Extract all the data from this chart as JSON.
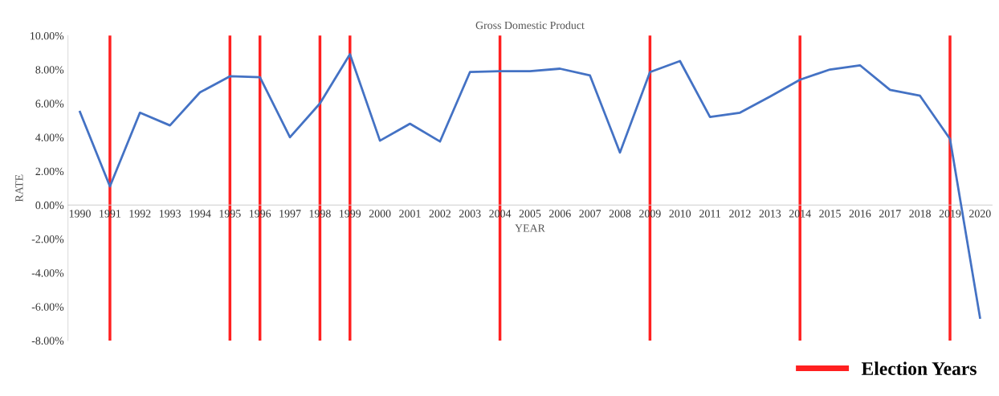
{
  "chart_data": {
    "type": "line",
    "title": "Gross Domestic Product",
    "xlabel": "YEAR",
    "ylabel": "RATE",
    "categories": [
      "1990",
      "1991",
      "1992",
      "1993",
      "1994",
      "1995",
      "1996",
      "1997",
      "1998",
      "1999",
      "2000",
      "2001",
      "2002",
      "2003",
      "2004",
      "2005",
      "2006",
      "2007",
      "2008",
      "2009",
      "2010",
      "2011",
      "2012",
      "2013",
      "2014",
      "2015",
      "2016",
      "2017",
      "2018",
      "2019",
      "2020"
    ],
    "series": [
      {
        "color": "#4472c4",
        "values": [
          5.5,
          1.1,
          5.45,
          4.7,
          6.65,
          7.6,
          7.55,
          4.0,
          6.0,
          8.9,
          3.8,
          4.8,
          3.75,
          7.85,
          7.9,
          7.9,
          8.05,
          7.65,
          3.1,
          7.85,
          8.5,
          5.2,
          5.45,
          6.4,
          7.4,
          8.0,
          8.25,
          6.8,
          6.45,
          3.9,
          -6.65
        ]
      }
    ],
    "ylim": [
      -8,
      10
    ],
    "yticks": [
      {
        "value": -8,
        "label": "-8.00%"
      },
      {
        "value": -6,
        "label": "-6.00%"
      },
      {
        "value": -4,
        "label": "-4.00%"
      },
      {
        "value": -2,
        "label": "-2.00%"
      },
      {
        "value": 0,
        "label": "0.00%"
      },
      {
        "value": 2,
        "label": "2.00%"
      },
      {
        "value": 4,
        "label": "4.00%"
      },
      {
        "value": 6,
        "label": "6.00%"
      },
      {
        "value": 8,
        "label": "8.00%"
      },
      {
        "value": 10,
        "label": "10.00%"
      }
    ],
    "ref_lines": [
      {
        "axis": "x",
        "value": "1991",
        "label": "Election Years",
        "color": "#ff2020"
      },
      {
        "axis": "x",
        "value": "1995",
        "color": "#ff2020"
      },
      {
        "axis": "x",
        "value": "1996",
        "color": "#ff2020"
      },
      {
        "axis": "x",
        "value": "1998",
        "color": "#ff2020"
      },
      {
        "axis": "x",
        "value": "1999",
        "color": "#ff2020"
      },
      {
        "axis": "x",
        "value": "2004",
        "color": "#ff2020"
      },
      {
        "axis": "x",
        "value": "2009",
        "color": "#ff2020"
      },
      {
        "axis": "x",
        "value": "2014",
        "color": "#ff2020"
      },
      {
        "axis": "x",
        "value": "2019",
        "color": "#ff2020"
      }
    ],
    "grid": false,
    "legend": "bottom right",
    "marker": "none",
    "line_style": "solid"
  }
}
